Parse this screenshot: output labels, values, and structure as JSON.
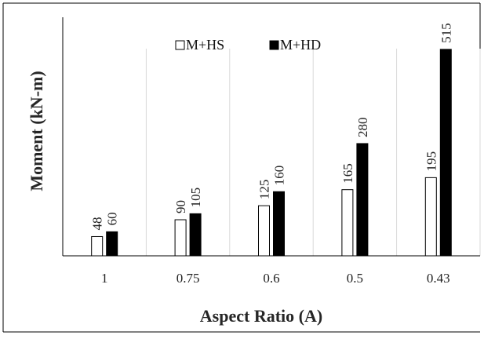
{
  "chart_data": {
    "type": "bar",
    "xlabel": "Aspect Ratio (A)",
    "ylabel": "Moment (kN-m)",
    "categories": [
      "1",
      "0.75",
      "0.6",
      "0.5",
      "0.43"
    ],
    "series": [
      {
        "name": "M+HS",
        "values": [
          48,
          90,
          125,
          165,
          195
        ],
        "fill": "#ffffff",
        "stroke": "#000000"
      },
      {
        "name": "M+HD",
        "values": [
          60,
          105,
          160,
          280,
          515
        ],
        "fill": "#000000",
        "stroke": "#000000"
      }
    ],
    "ylim": [
      0,
      595
    ],
    "grid": true,
    "legend": "top-left",
    "data_labels": true
  },
  "colors": {
    "frame": "#000000",
    "gridline": "#d9d9d9",
    "axis_title": "#262626"
  }
}
